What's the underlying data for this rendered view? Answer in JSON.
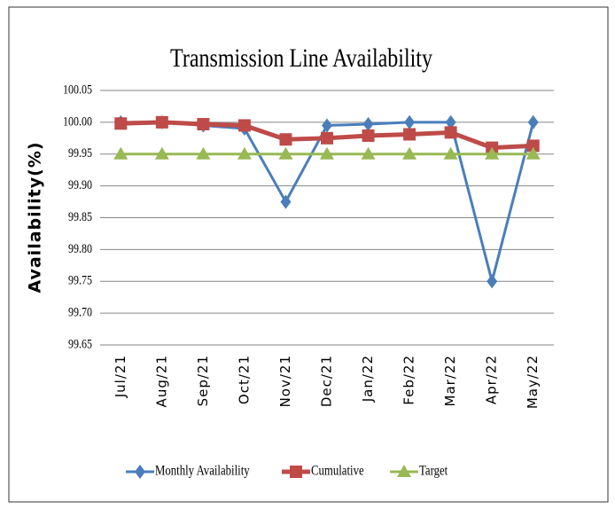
{
  "chart_data": {
    "type": "line",
    "title": "Transmission  Line Availability",
    "y_label": "Availability(%)",
    "categories": [
      "Jul/21",
      "Aug/21",
      "Sep/21",
      "Oct/21",
      "Nov/21",
      "Dec/21",
      "Jan/22",
      "Feb/22",
      "Mar/22",
      "Apr/22",
      "May/22"
    ],
    "series": [
      {
        "name": "Monthly Availability",
        "color": "#4a7ebb",
        "marker": "diamond",
        "values": [
          100.0,
          100.0,
          99.995,
          99.99,
          99.875,
          99.995,
          99.997,
          100.0,
          100.0,
          99.75,
          100.0
        ]
      },
      {
        "name": "Cumulative",
        "color": "#be4b48",
        "marker": "square",
        "values": [
          99.998,
          100.0,
          99.997,
          99.995,
          99.973,
          99.975,
          99.979,
          99.981,
          99.984,
          99.96,
          99.963
        ]
      },
      {
        "name": "Target",
        "color": "#98b954",
        "marker": "triangle",
        "values": [
          99.95,
          99.95,
          99.95,
          99.95,
          99.95,
          99.95,
          99.95,
          99.95,
          99.95,
          99.95,
          99.95
        ]
      }
    ],
    "ylim": [
      99.65,
      100.05
    ],
    "yticks": [
      99.65,
      {
        "value": 99.7,
        "label": "99.70"
      },
      99.75,
      {
        "value": 99.8,
        "label": "99.80"
      },
      99.85,
      {
        "value": 99.9,
        "label": "99.90"
      },
      99.95,
      {
        "value": 100,
        "label": "100.00"
      },
      100.05
    ],
    "grid": true,
    "legend": "bottom"
  }
}
